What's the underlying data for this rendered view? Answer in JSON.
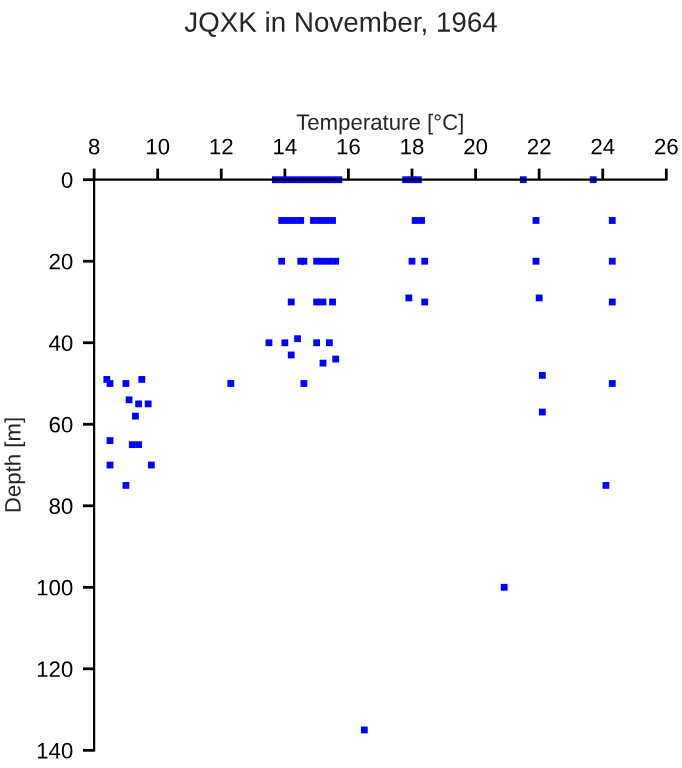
{
  "chart_data": {
    "type": "scatter",
    "title": "JQXK in November, 1964",
    "xlabel": "Temperature [°C]",
    "ylabel": "Depth [m]",
    "xlim": [
      8,
      26
    ],
    "xticks": [
      8,
      10,
      12,
      14,
      16,
      18,
      20,
      22,
      24,
      26
    ],
    "ylim": [
      140,
      0
    ],
    "yticks": [
      0,
      20,
      40,
      60,
      80,
      100,
      120,
      140
    ],
    "grid": false,
    "marker": "square",
    "series": [
      {
        "color": "#0000ff",
        "x": [
          13.7,
          13.9,
          14.1,
          14.3,
          14.5,
          14.7,
          14.9,
          15.1,
          15.3,
          15.5,
          15.7,
          17.8,
          18.0,
          18.2,
          21.5,
          23.7,
          13.9,
          14.1,
          14.3,
          14.5,
          14.9,
          15.1,
          15.3,
          15.5,
          18.1,
          18.3,
          21.9,
          24.3,
          13.9,
          14.5,
          14.6,
          15.0,
          15.2,
          15.4,
          15.6,
          18.0,
          18.4,
          21.9,
          24.3,
          14.2,
          15.0,
          15.2,
          15.5,
          17.9,
          18.4,
          22.0,
          24.3,
          13.5,
          14.0,
          14.4,
          15.0,
          15.4,
          14.2,
          15.2,
          15.6,
          8.4,
          8.5,
          9.0,
          9.5,
          9.1,
          9.4,
          9.7,
          9.3,
          8.5,
          9.2,
          9.4,
          8.5,
          9.8,
          9.0,
          12.3,
          14.6,
          22.1,
          22.1,
          24.3,
          24.1,
          20.9,
          16.5
        ],
        "values": [
          0,
          0,
          0,
          0,
          0,
          0,
          0,
          0,
          0,
          0,
          0,
          0,
          0,
          0,
          0,
          0,
          10,
          10,
          10,
          10,
          10,
          10,
          10,
          10,
          10,
          10,
          10,
          10,
          20,
          20,
          20,
          20,
          20,
          20,
          20,
          20,
          20,
          20,
          20,
          30,
          30,
          30,
          30,
          29,
          30,
          29,
          30,
          40,
          40,
          39,
          40,
          40,
          43,
          45,
          44,
          49,
          50,
          50,
          49,
          54,
          55,
          55,
          58,
          64,
          65,
          65,
          70,
          70,
          75,
          50,
          50,
          48,
          57,
          50,
          75,
          100,
          135
        ]
      }
    ]
  }
}
